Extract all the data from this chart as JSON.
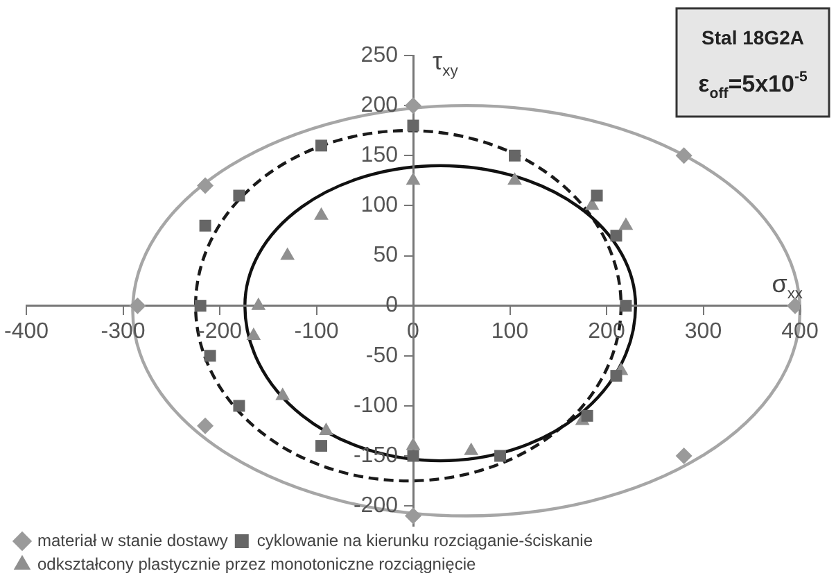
{
  "chart_data": {
    "type": "scatter",
    "xlabel": "σ$_{xx}$",
    "ylabel": "τ$_{xy}$",
    "annotations": [
      "Stal 18G2A",
      "ε$_{off}$=5x10$^{-5}$"
    ],
    "xlim": [
      -400,
      400
    ],
    "xticks": [
      -400,
      -300,
      -200,
      -100,
      0,
      100,
      200,
      300,
      400
    ],
    "ylim": [
      -220,
      250
    ],
    "yticks": [
      -200,
      -150,
      -100,
      -50,
      0,
      50,
      100,
      150,
      200,
      250
    ],
    "grid": false,
    "legend": "bottom",
    "series": [
      {
        "name": "materiał w stanie dostawy",
        "color": "#9a9a9a",
        "marker": "diamond",
        "x": [
          0,
          -215,
          -285,
          395,
          280,
          -215,
          0,
          280
        ],
        "values": [
          200,
          120,
          0,
          0,
          150,
          -120,
          -210,
          -150
        ]
      },
      {
        "name": "cyklowanie na kierunku rozciąganie-ściskanie",
        "color": "#666666",
        "marker": "square",
        "x": [
          0,
          -95,
          -180,
          -215,
          -220,
          -210,
          -180,
          -95,
          0,
          90,
          180,
          210,
          220,
          210,
          190,
          105
        ],
        "values": [
          180,
          160,
          110,
          80,
          0,
          -50,
          -100,
          -140,
          -150,
          -150,
          -110,
          -70,
          0,
          70,
          110,
          150
        ]
      },
      {
        "name": "odkształcony plastycznie przez monotoniczne rozciągnięcie",
        "color": "#8f8f8f",
        "marker": "triangle",
        "x": [
          0,
          -95,
          -130,
          -160,
          -165,
          -135,
          -90,
          0,
          60,
          175,
          215,
          220,
          185,
          105
        ],
        "values": [
          125,
          90,
          50,
          0,
          -30,
          -90,
          -125,
          -140,
          -145,
          -115,
          -65,
          80,
          100,
          125
        ]
      }
    ]
  }
}
